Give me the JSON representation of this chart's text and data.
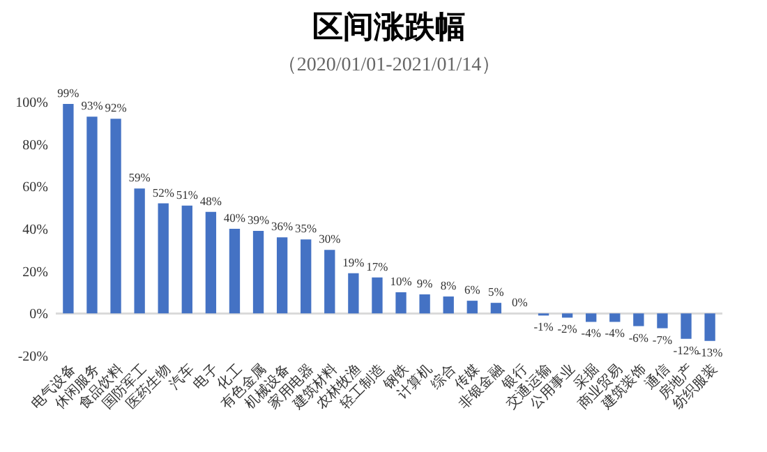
{
  "chart_data": {
    "type": "bar",
    "title": "区间涨跌幅",
    "subtitle": "（2020/01/01-2021/01/14）",
    "categories": [
      "电气设备",
      "休闲服务",
      "食品饮料",
      "国防军工",
      "医药生物",
      "汽车",
      "电子",
      "化工",
      "有色金属",
      "机械设备",
      "家用电器",
      "建筑材料",
      "农林牧渔",
      "轻工制造",
      "钢铁",
      "计算机",
      "综合",
      "传媒",
      "非银金融",
      "银行",
      "交通运输",
      "公用事业",
      "采掘",
      "商业贸易",
      "建筑装饰",
      "通信",
      "房地产",
      "纺织服装"
    ],
    "values": [
      99,
      93,
      92,
      59,
      52,
      51,
      48,
      40,
      39,
      36,
      35,
      30,
      19,
      17,
      10,
      9,
      8,
      6,
      5,
      0,
      -1,
      -2,
      -4,
      -4,
      -6,
      -7,
      -12,
      -13
    ],
    "color": "#4472c4",
    "ylim": [
      -20,
      100
    ],
    "yticks": [
      {
        "value": -20,
        "label": "-20%"
      },
      {
        "value": 0,
        "label": "0%"
      },
      {
        "value": 20,
        "label": "20%"
      },
      {
        "value": 40,
        "label": "40%"
      },
      {
        "value": 60,
        "label": "60%"
      },
      {
        "value": 80,
        "label": "80%"
      },
      {
        "value": 100,
        "label": "100%"
      }
    ],
    "value_labels": [
      "99%",
      "93%",
      "92%",
      "59%",
      "52%",
      "51%",
      "48%",
      "40%",
      "39%",
      "36%",
      "35%",
      "30%",
      "19%",
      "17%",
      "10%",
      "9%",
      "8%",
      "6%",
      "5%",
      "0%",
      "-1%",
      "-2%",
      "-4%",
      "-4%",
      "-6%",
      "-7%",
      "-12%",
      "-13%"
    ],
    "ref_lines": [
      {
        "axis": "y",
        "value": 0,
        "color": "#d9d9d9"
      }
    ],
    "grid": false
  }
}
